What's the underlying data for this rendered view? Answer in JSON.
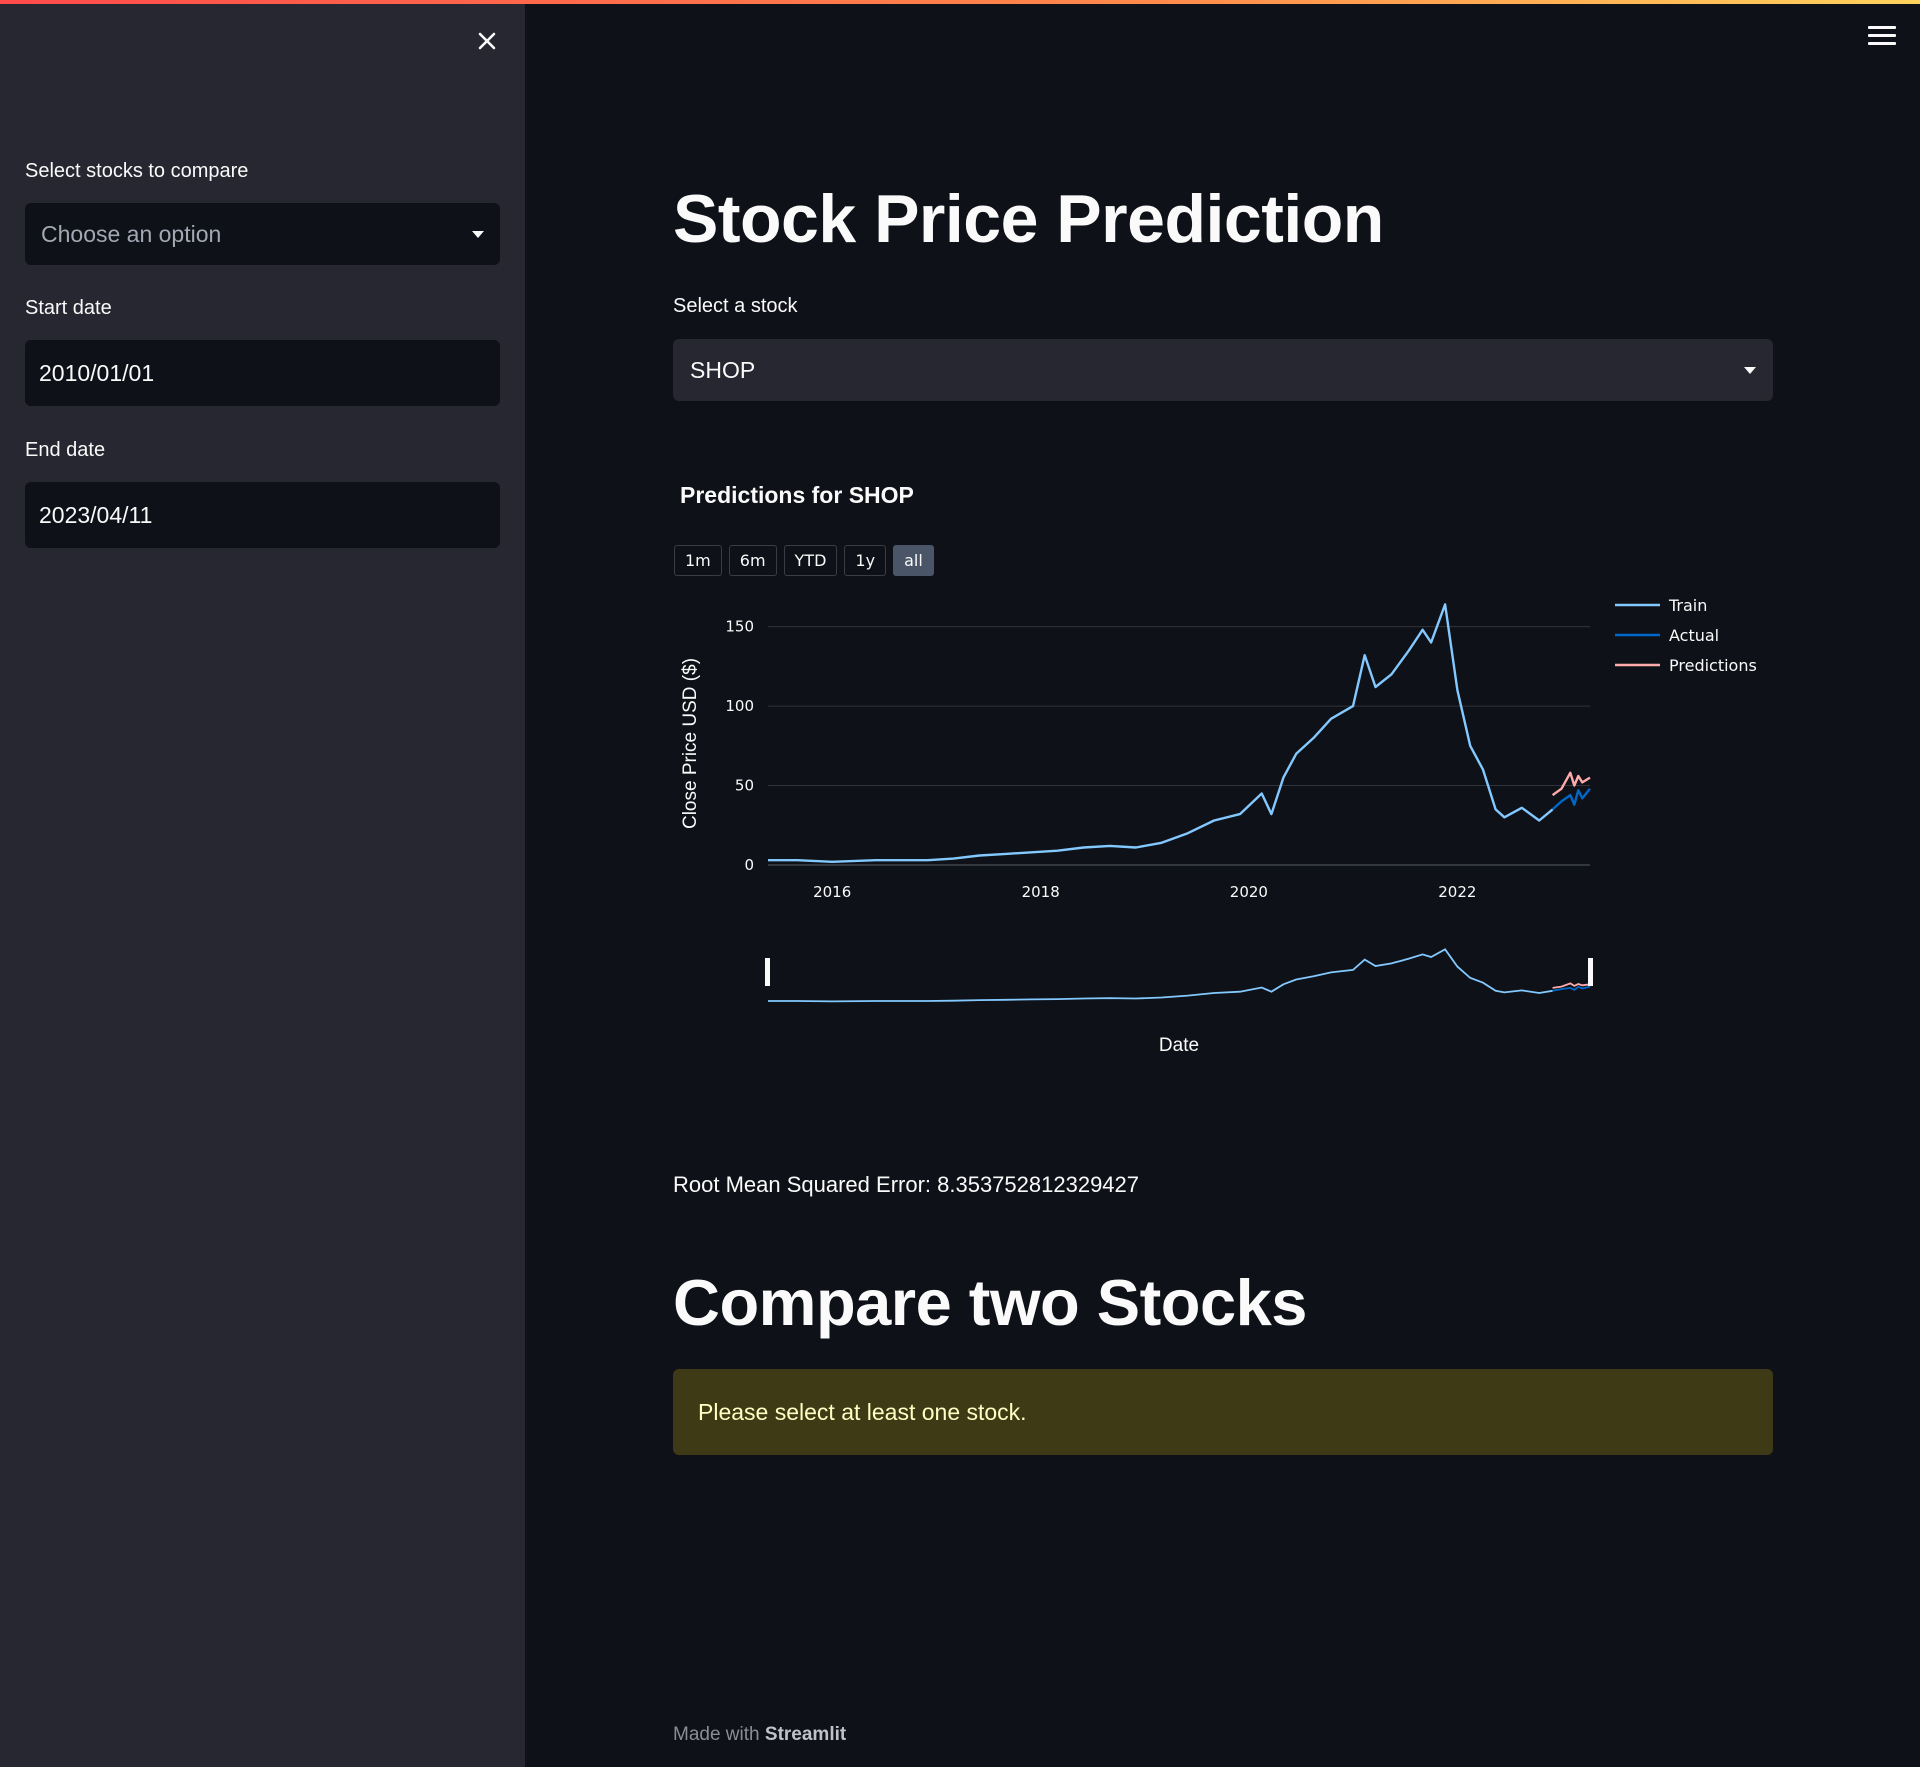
{
  "sidebar": {
    "compare_label": "Select stocks to compare",
    "compare_placeholder": "Choose an option",
    "start_label": "Start date",
    "start_value": "2010/01/01",
    "end_label": "End date",
    "end_value": "2023/04/11"
  },
  "main": {
    "title": "Stock Price Prediction",
    "stock_label": "Select a stock",
    "stock_value": "SHOP",
    "chart_title": "Predictions for SHOP",
    "range_buttons": [
      "1m",
      "6m",
      "YTD",
      "1y",
      "all"
    ],
    "active_range": "all",
    "rmse": "Root Mean Squared Error: 8.353752812329427",
    "compare_title": "Compare two Stocks",
    "warning": "Please select at least one stock.",
    "footer_prefix": "Made with",
    "footer_brand": "Streamlit"
  },
  "icons": {
    "close": "close-icon",
    "menu": "hamburger-menu-icon",
    "dropdown": "chevron-down-icon"
  },
  "colors": {
    "train": "#83c9ff",
    "actual": "#0068c9",
    "predictions": "#ffabab",
    "warning_bg": "#3e3a16"
  },
  "chart_data": {
    "type": "line",
    "title": "Predictions for SHOP",
    "xlabel": "Date",
    "ylabel": "Close Price USD ($)",
    "xlim": [
      "2015-05-21",
      "2023-04-11"
    ],
    "ylim": [
      0,
      168
    ],
    "x_ticks": [
      "2016",
      "2018",
      "2020",
      "2022"
    ],
    "y_ticks": [
      0,
      50,
      100,
      150
    ],
    "grid": true,
    "legend": "top-right",
    "rangeslider": true,
    "series": [
      {
        "name": "Train",
        "color": "#83c9ff",
        "x": [
          "2015-05-21",
          "2015-09-01",
          "2016-01-01",
          "2016-06-01",
          "2016-12-01",
          "2017-03-01",
          "2017-06-01",
          "2017-09-01",
          "2017-12-01",
          "2018-03-01",
          "2018-06-01",
          "2018-09-01",
          "2018-12-01",
          "2019-03-01",
          "2019-06-01",
          "2019-09-01",
          "2019-12-01",
          "2020-02-15",
          "2020-03-20",
          "2020-05-01",
          "2020-06-15",
          "2020-08-15",
          "2020-10-15",
          "2020-12-31",
          "2021-02-10",
          "2021-03-20",
          "2021-05-15",
          "2021-07-15",
          "2021-09-01",
          "2021-10-01",
          "2021-11-19",
          "2022-01-01",
          "2022-02-15",
          "2022-04-01",
          "2022-05-15",
          "2022-06-15",
          "2022-08-15",
          "2022-10-15",
          "2022-12-01"
        ],
        "values": [
          3,
          3,
          2,
          3,
          3,
          4,
          6,
          7,
          8,
          9,
          11,
          12,
          11,
          14,
          20,
          28,
          32,
          45,
          32,
          55,
          70,
          80,
          92,
          100,
          132,
          112,
          120,
          135,
          148,
          140,
          164,
          110,
          75,
          60,
          35,
          30,
          36,
          28,
          35
        ]
      },
      {
        "name": "Actual",
        "color": "#0068c9",
        "x": [
          "2022-12-01",
          "2023-01-01",
          "2023-02-01",
          "2023-02-15",
          "2023-03-01",
          "2023-03-15",
          "2023-04-11"
        ],
        "values": [
          35,
          40,
          44,
          38,
          47,
          42,
          48
        ]
      },
      {
        "name": "Predictions",
        "color": "#ffabab",
        "x": [
          "2022-12-01",
          "2023-01-01",
          "2023-02-01",
          "2023-02-15",
          "2023-03-01",
          "2023-03-15",
          "2023-04-11"
        ],
        "values": [
          44,
          48,
          58,
          50,
          56,
          52,
          55
        ]
      }
    ]
  }
}
